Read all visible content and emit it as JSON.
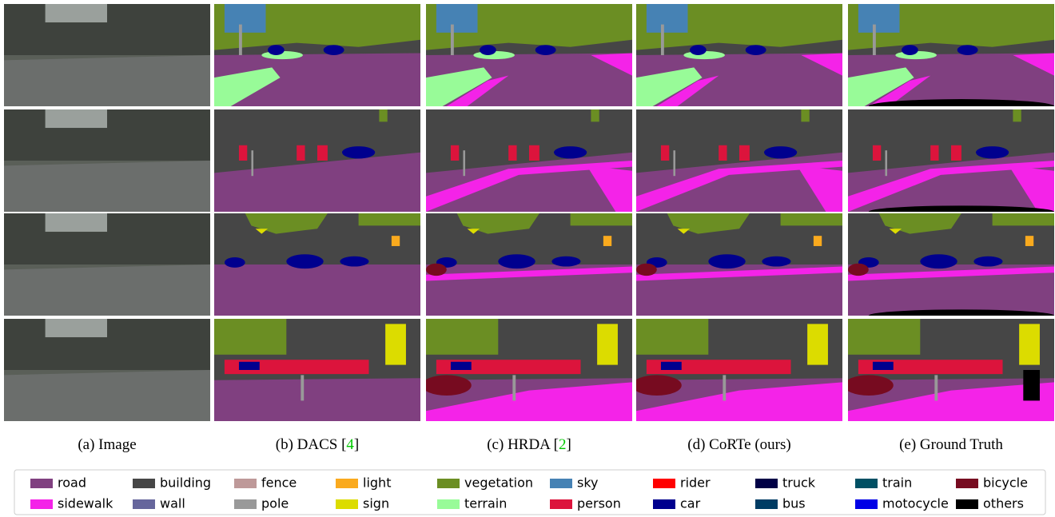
{
  "figure": {
    "columns": [
      {
        "caption": "(a) Image"
      },
      {
        "caption": "(b) DACS [",
        "citation": "4",
        "close": "]"
      },
      {
        "caption": "(c) HRDA [",
        "citation": "2",
        "close": "]"
      },
      {
        "caption": "(d) CoRTe (ours)"
      },
      {
        "caption": "(e) Ground Truth"
      }
    ],
    "citation_color": "#00c800",
    "legend": {
      "rows": [
        [
          {
            "name": "road",
            "color": "#804080"
          },
          {
            "name": "building",
            "color": "#464646"
          },
          {
            "name": "fence",
            "color": "#be9999"
          },
          {
            "name": "light",
            "color": "#faaa1e"
          },
          {
            "name": "vegetation",
            "color": "#6b8e23"
          },
          {
            "name": "sky",
            "color": "#4682b4"
          },
          {
            "name": "rider",
            "color": "#ff0000"
          },
          {
            "name": "truck",
            "color": "#000046"
          },
          {
            "name": "train",
            "color": "#005064"
          },
          {
            "name": "bicycle",
            "color": "#770b20"
          }
        ],
        [
          {
            "name": "sidewalk",
            "color": "#f423e8"
          },
          {
            "name": "wall",
            "color": "#66669c"
          },
          {
            "name": "pole",
            "color": "#999999"
          },
          {
            "name": "sign",
            "color": "#dcdc00"
          },
          {
            "name": "terrain",
            "color": "#98fb98"
          },
          {
            "name": "person",
            "color": "#dc143c"
          },
          {
            "name": "car",
            "color": "#00008e"
          },
          {
            "name": "bus",
            "color": "#003c64"
          },
          {
            "name": "motocycle",
            "color": "#0000e6"
          },
          {
            "name": "others",
            "color": "#000000"
          }
        ]
      ]
    }
  }
}
